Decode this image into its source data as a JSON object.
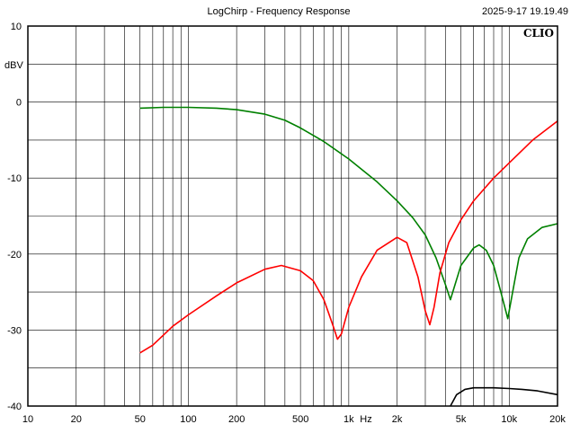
{
  "chart_data": {
    "type": "line",
    "title": "LogChirp - Frequency Response",
    "timestamp": "2025-9-17 19.19.49",
    "brand": "CLIO",
    "ylabel": "dBV",
    "xlabel": "Hz",
    "xscale": "log",
    "xlim": [
      10,
      20000
    ],
    "ylim": [
      -40,
      10
    ],
    "grid": true,
    "x_ticks": [
      {
        "v": 10,
        "label": "10"
      },
      {
        "v": 20,
        "label": "20"
      },
      {
        "v": 50,
        "label": "50"
      },
      {
        "v": 100,
        "label": "100"
      },
      {
        "v": 200,
        "label": "200"
      },
      {
        "v": 500,
        "label": "500"
      },
      {
        "v": 1000,
        "label": "1k"
      },
      {
        "v": 2000,
        "label": "2k"
      },
      {
        "v": 5000,
        "label": "5k"
      },
      {
        "v": 10000,
        "label": "10k"
      },
      {
        "v": 20000,
        "label": "20k"
      }
    ],
    "y_ticks": [
      {
        "v": 10,
        "label": "10"
      },
      {
        "v": 0,
        "label": "0"
      },
      {
        "v": -10,
        "label": "-10"
      },
      {
        "v": -20,
        "label": "-20"
      },
      {
        "v": -30,
        "label": "-30"
      },
      {
        "v": -40,
        "label": "-40"
      }
    ],
    "series": [
      {
        "color": "#008000",
        "points": [
          [
            50,
            -0.8
          ],
          [
            70,
            -0.7
          ],
          [
            100,
            -0.7
          ],
          [
            150,
            -0.8
          ],
          [
            200,
            -1.0
          ],
          [
            300,
            -1.6
          ],
          [
            400,
            -2.4
          ],
          [
            500,
            -3.4
          ],
          [
            700,
            -5.2
          ],
          [
            1000,
            -7.5
          ],
          [
            1500,
            -10.5
          ],
          [
            2000,
            -13.0
          ],
          [
            2500,
            -15.2
          ],
          [
            3000,
            -17.5
          ],
          [
            3500,
            -20.5
          ],
          [
            4000,
            -24.0
          ],
          [
            4300,
            -26.0
          ],
          [
            4600,
            -24.0
          ],
          [
            5000,
            -21.5
          ],
          [
            6000,
            -19.2
          ],
          [
            6500,
            -18.8
          ],
          [
            7200,
            -19.5
          ],
          [
            8000,
            -21.5
          ],
          [
            9000,
            -25.5
          ],
          [
            9800,
            -28.5
          ],
          [
            10500,
            -25.0
          ],
          [
            11500,
            -20.5
          ],
          [
            13000,
            -18.0
          ],
          [
            16000,
            -16.5
          ],
          [
            20000,
            -16.0
          ]
        ]
      },
      {
        "color": "#ff0000",
        "points": [
          [
            50,
            -33
          ],
          [
            60,
            -32
          ],
          [
            80,
            -29.5
          ],
          [
            100,
            -28
          ],
          [
            150,
            -25.5
          ],
          [
            200,
            -23.8
          ],
          [
            300,
            -22
          ],
          [
            380,
            -21.5
          ],
          [
            500,
            -22.2
          ],
          [
            600,
            -23.5
          ],
          [
            700,
            -26
          ],
          [
            800,
            -29.5
          ],
          [
            850,
            -31.2
          ],
          [
            900,
            -30.5
          ],
          [
            1000,
            -27
          ],
          [
            1200,
            -23
          ],
          [
            1500,
            -19.5
          ],
          [
            2000,
            -17.8
          ],
          [
            2300,
            -18.5
          ],
          [
            2700,
            -23
          ],
          [
            3000,
            -27.5
          ],
          [
            3200,
            -29.3
          ],
          [
            3400,
            -27
          ],
          [
            3700,
            -22.5
          ],
          [
            4200,
            -18.5
          ],
          [
            5000,
            -15.5
          ],
          [
            6000,
            -13
          ],
          [
            8000,
            -10
          ],
          [
            10000,
            -8
          ],
          [
            14000,
            -5
          ],
          [
            20000,
            -2.5
          ]
        ]
      },
      {
        "color": "#000000",
        "points": [
          [
            4300,
            -40
          ],
          [
            4700,
            -38.5
          ],
          [
            5300,
            -37.8
          ],
          [
            6000,
            -37.6
          ],
          [
            8000,
            -37.6
          ],
          [
            10000,
            -37.7
          ],
          [
            12000,
            -37.8
          ],
          [
            15000,
            -38.0
          ],
          [
            20000,
            -38.5
          ]
        ]
      }
    ]
  }
}
